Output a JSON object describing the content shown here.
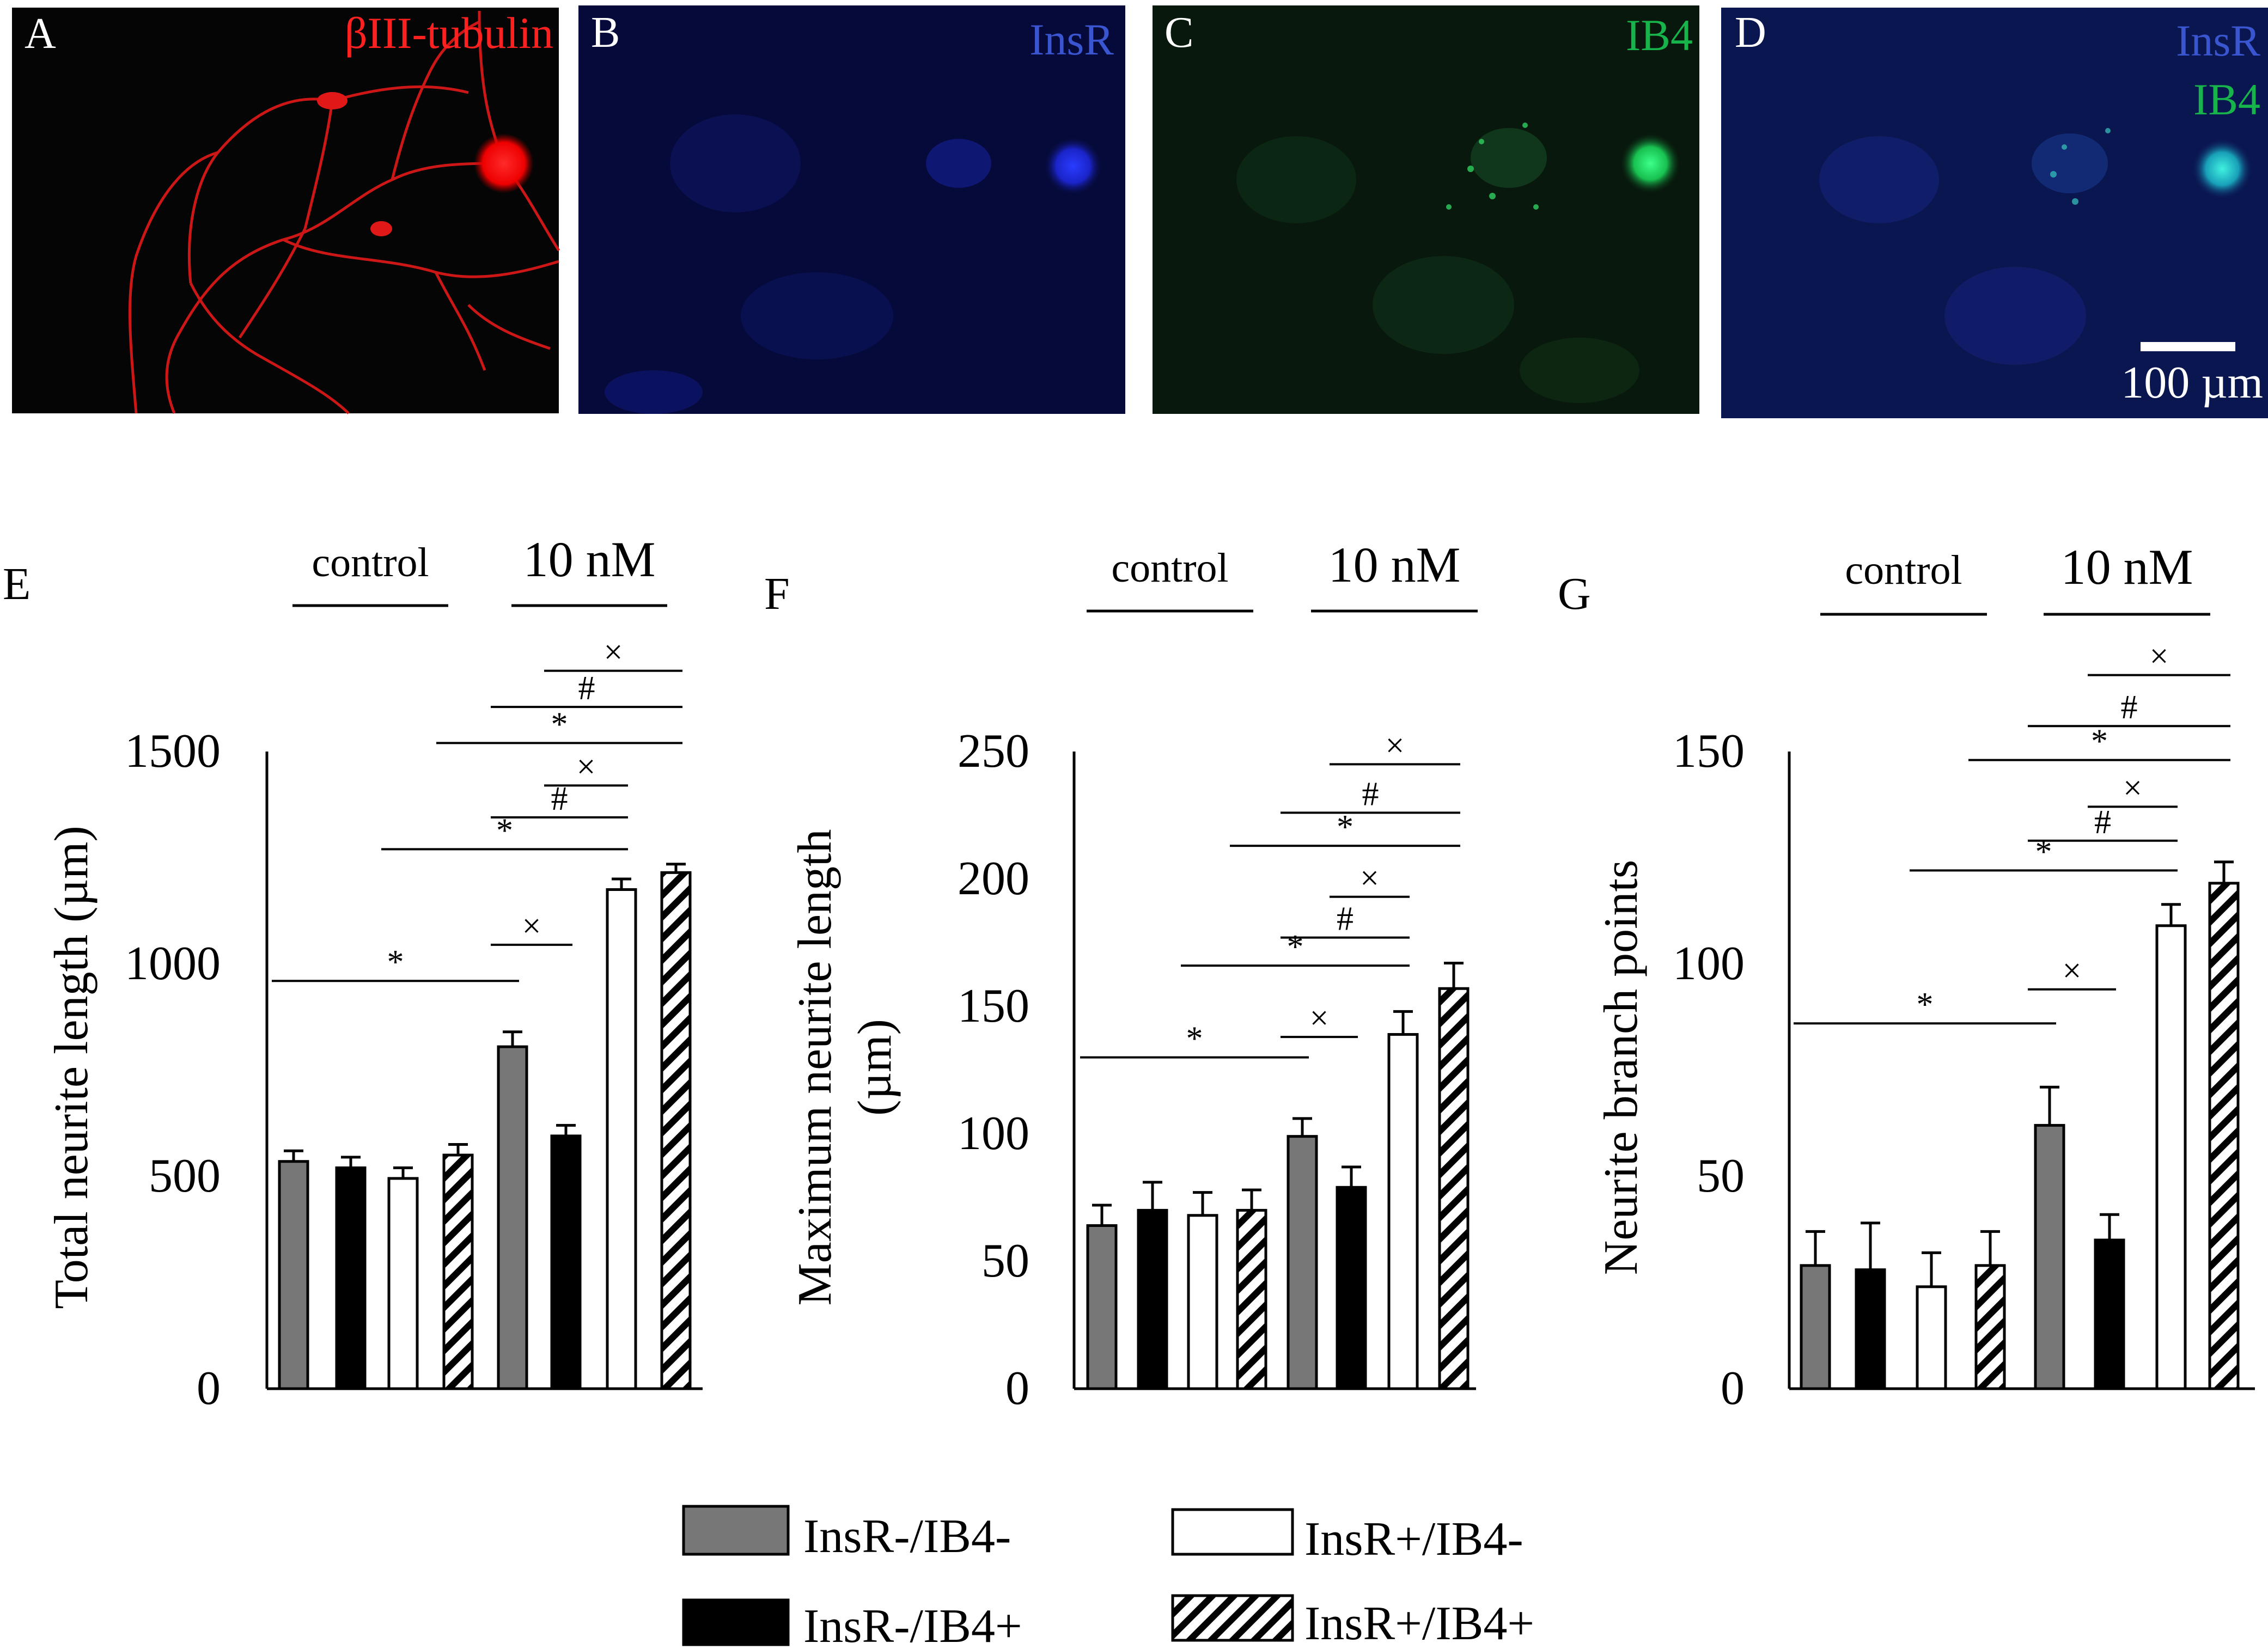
{
  "panels_micro": [
    {
      "letter": "A",
      "labels": [
        {
          "text": "βIII-tubulin",
          "color": "#ff2020"
        }
      ]
    },
    {
      "letter": "B",
      "labels": [
        {
          "text": "InsR",
          "color": "#3a55d0"
        }
      ]
    },
    {
      "letter": "C",
      "labels": [
        {
          "text": "IB4",
          "color": "#16b44a"
        }
      ]
    },
    {
      "letter": "D",
      "labels": [
        {
          "text": "InsR",
          "color": "#3a55d0"
        },
        {
          "text": "IB4",
          "color": "#16b44a"
        }
      ],
      "scalebar": "100 µm"
    }
  ],
  "chart_data": [
    {
      "panel": "E",
      "type": "bar",
      "ylabel": [
        "Total neurite length (µm)"
      ],
      "ylim": [
        0,
        1500
      ],
      "yticks": [
        0,
        500,
        1000,
        1500
      ],
      "groups": [
        {
          "label": "control"
        },
        {
          "label": "10 nM"
        }
      ],
      "series": [
        {
          "name": "InsR-/IB4-",
          "values": [
            535,
            805
          ],
          "errors": [
            25,
            35
          ]
        },
        {
          "name": "InsR-/IB4+",
          "values": [
            520,
            595
          ],
          "errors": [
            25,
            25
          ]
        },
        {
          "name": "InsR+/IB4-",
          "values": [
            495,
            1175
          ],
          "errors": [
            25,
            25
          ]
        },
        {
          "name": "InsR+/IB4+",
          "values": [
            550,
            1215
          ],
          "errors": [
            25,
            20
          ]
        }
      ],
      "annotations": [
        {
          "symbol": "*",
          "from": [
            0,
            0
          ],
          "to": [
            1,
            0
          ],
          "y": 960
        },
        {
          "symbol": "×",
          "from": [
            1,
            0
          ],
          "to": [
            1,
            1
          ],
          "y": 1045
        },
        {
          "symbol": "*",
          "from": [
            0,
            2
          ],
          "to": [
            1,
            2
          ],
          "y": 1270
        },
        {
          "symbol": "#",
          "from": [
            1,
            0
          ],
          "to": [
            1,
            2
          ],
          "y": 1345
        },
        {
          "symbol": "×",
          "from": [
            1,
            1
          ],
          "to": [
            1,
            2
          ],
          "y": 1420
        },
        {
          "symbol": "*",
          "from": [
            0,
            3
          ],
          "to": [
            1,
            3
          ],
          "y": 1520
        },
        {
          "symbol": "#",
          "from": [
            1,
            0
          ],
          "to": [
            1,
            3
          ],
          "y": 1605
        },
        {
          "symbol": "×",
          "from": [
            1,
            1
          ],
          "to": [
            1,
            3
          ],
          "y": 1690
        }
      ]
    },
    {
      "panel": "F",
      "type": "bar",
      "ylabel": [
        "Maximum neurite length",
        "(µm)"
      ],
      "ylim": [
        0,
        250
      ],
      "yticks": [
        0,
        50,
        100,
        150,
        200,
        250
      ],
      "groups": [
        {
          "label": "control"
        },
        {
          "label": "10 nM"
        }
      ],
      "series": [
        {
          "name": "InsR-/IB4-",
          "values": [
            64,
            99
          ],
          "errors": [
            8,
            7
          ]
        },
        {
          "name": "InsR-/IB4+",
          "values": [
            70,
            79
          ],
          "errors": [
            11,
            8
          ]
        },
        {
          "name": "InsR+/IB4-",
          "values": [
            68,
            139
          ],
          "errors": [
            9,
            9
          ]
        },
        {
          "name": "InsR+/IB4+",
          "values": [
            70,
            157
          ],
          "errors": [
            8,
            10
          ]
        }
      ],
      "annotations": [
        {
          "symbol": "*",
          "from": [
            0,
            0
          ],
          "to": [
            1,
            0
          ],
          "y": 130
        },
        {
          "symbol": "×",
          "from": [
            1,
            0
          ],
          "to": [
            1,
            1
          ],
          "y": 138
        },
        {
          "symbol": "*",
          "from": [
            0,
            2
          ],
          "to": [
            1,
            2
          ],
          "y": 166
        },
        {
          "symbol": "#",
          "from": [
            1,
            0
          ],
          "to": [
            1,
            2
          ],
          "y": 177
        },
        {
          "symbol": "×",
          "from": [
            1,
            1
          ],
          "to": [
            1,
            2
          ],
          "y": 193
        },
        {
          "symbol": "*",
          "from": [
            0,
            3
          ],
          "to": [
            1,
            3
          ],
          "y": 213
        },
        {
          "symbol": "#",
          "from": [
            1,
            0
          ],
          "to": [
            1,
            3
          ],
          "y": 226
        },
        {
          "symbol": "×",
          "from": [
            1,
            1
          ],
          "to": [
            1,
            3
          ],
          "y": 245
        }
      ]
    },
    {
      "panel": "G",
      "type": "bar",
      "ylabel": [
        "Neurite branch points"
      ],
      "ylim": [
        0,
        150
      ],
      "yticks": [
        0,
        50,
        100,
        150
      ],
      "groups": [
        {
          "label": "control"
        },
        {
          "label": "10 nM"
        }
      ],
      "series": [
        {
          "name": "InsR-/IB4-",
          "values": [
            29,
            62
          ],
          "errors": [
            8,
            9
          ]
        },
        {
          "name": "InsR-/IB4+",
          "values": [
            28,
            35
          ],
          "errors": [
            11,
            6
          ]
        },
        {
          "name": "InsR+/IB4-",
          "values": [
            24,
            109
          ],
          "errors": [
            8,
            5
          ]
        },
        {
          "name": "InsR+/IB4+",
          "values": [
            29,
            119
          ],
          "errors": [
            8,
            5
          ]
        }
      ],
      "annotations": [
        {
          "symbol": "*",
          "from": [
            0,
            0
          ],
          "to": [
            1,
            0
          ],
          "y": 86
        },
        {
          "symbol": "×",
          "from": [
            1,
            0
          ],
          "to": [
            1,
            1
          ],
          "y": 94
        },
        {
          "symbol": "*",
          "from": [
            0,
            2
          ],
          "to": [
            1,
            2
          ],
          "y": 122
        },
        {
          "symbol": "#",
          "from": [
            1,
            0
          ],
          "to": [
            1,
            2
          ],
          "y": 129
        },
        {
          "symbol": "×",
          "from": [
            1,
            1
          ],
          "to": [
            1,
            2
          ],
          "y": 137
        },
        {
          "symbol": "*",
          "from": [
            0,
            3
          ],
          "to": [
            1,
            3
          ],
          "y": 148
        },
        {
          "symbol": "#",
          "from": [
            1,
            0
          ],
          "to": [
            1,
            3
          ],
          "y": 156
        },
        {
          "symbol": "×",
          "from": [
            1,
            1
          ],
          "to": [
            1,
            3
          ],
          "y": 168
        }
      ]
    }
  ],
  "legend": {
    "placement": "bottom",
    "items": [
      {
        "label": "InsR-/IB4-",
        "fill": "#777777"
      },
      {
        "label": "InsR+/IB4-",
        "fill": "#ffffff"
      },
      {
        "label": "InsR-/IB4+",
        "fill": "#000000"
      },
      {
        "label": "InsR+/IB4+",
        "fill": "hatch"
      }
    ]
  }
}
